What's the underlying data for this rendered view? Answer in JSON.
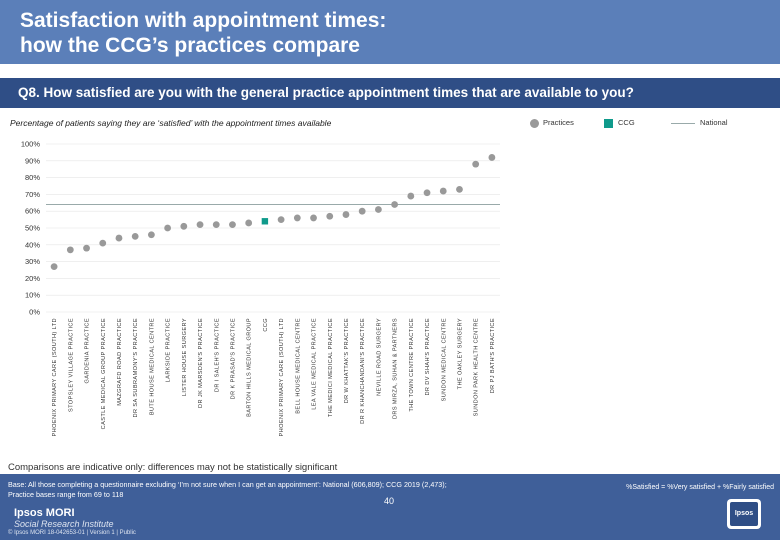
{
  "header": {
    "title_line1": "Satisfaction with appointment times:",
    "title_line2": "how the CCG’s practices compare",
    "question": "Q8. How satisfied are you with the general practice appointment times that are available to you?",
    "subtitle": "Percentage of patients saying they are ‘satisfied’ with the appointment times available"
  },
  "legend": {
    "practices": "Practices",
    "ccg": "CCG",
    "national": "National"
  },
  "colors": {
    "title_band": "#5b7fb9",
    "question_band": "#2f4e86",
    "practice_marker": "#999999",
    "ccg_marker": "#0f9a8b",
    "national_line": "#99aaaa"
  },
  "chart_data": {
    "type": "scatter",
    "title": "Percentage of patients saying they are ‘satisfied’ with the appointment times available",
    "ylim": [
      0,
      100
    ],
    "yticks": [
      "0%",
      "10%",
      "20%",
      "30%",
      "40%",
      "50%",
      "60%",
      "70%",
      "80%",
      "90%",
      "100%"
    ],
    "national": 64,
    "ccg_index": 14,
    "categories": [
      "PHOENIX PRIMARY CARE (SOUTH) LTD",
      "STOPSLEY VILLAGE PRACTICE",
      "GARDENIA PRACTICE",
      "CASTLE MEDICAL GROUP PRACTICE",
      "MAZGRAFD ROAD PRACTICE",
      "DR SA SUBRAMONY'S PRACTICE",
      "BUTE HOUSE MEDICAL CENTRE",
      "LARKSIDE PRACTICE",
      "LISTER HOUSE SURGERY",
      "DR JK MARSDEN'S PRACTICE",
      "DR I SALEH'S PRACTICE",
      "DR K PRASAD'S PRACTICE",
      "BARTON HILLS MEDICAL GROUP",
      "CCG",
      "PHOENIX PRIMARY CARE (SOUTH) LTD",
      "BELL HOUSE MEDICAL CENTRE",
      "LEA VALE MEDICAL PRACTICE",
      "THE MEDICI MEDICAL PRACTICE",
      "DR W KHATTAK'S PRACTICE",
      "DR R KHANCHANDANI'S PRACTICE",
      "NEVILLE ROAD SURGERY",
      "DRS MIRZA, SUHAN & PARTNERS",
      "THE TOWN CENTRE PRACTICE",
      "DR DV SHAH'S PRACTICE",
      "SUNDON MEDICAL CENTRE",
      "THE OAKLEY SURGERY",
      "SUNDON PARK HEALTH CENTRE",
      "DR PJ BATH'S PRACTICE"
    ],
    "values": [
      27,
      37,
      38,
      41,
      44,
      45,
      46,
      50,
      51,
      52,
      52,
      52,
      53,
      54,
      55,
      56,
      56,
      57,
      58,
      60,
      61,
      64,
      69,
      71,
      72,
      73,
      88,
      92
    ]
  },
  "notes": {
    "comparison": "Comparisons are indicative only: differences may not be statistically significant",
    "base_line1": "Base: All those completing a questionnaire excluding ‘I’m not sure when I can get an appointment’: National (606,809); CCG 2019 (2,473);",
    "base_line2": "Practice bases range from 69 to 118",
    "formula": "%Satisfied = %Very satisfied + %Fairly satisfied"
  },
  "footer": {
    "brand": "Ipsos MORI",
    "brand_sub": "Social Research Institute",
    "copyright": "© Ipsos MORI     18-042653-01 | Version 1 | Public",
    "page": "40",
    "logo": "Ipsos"
  }
}
